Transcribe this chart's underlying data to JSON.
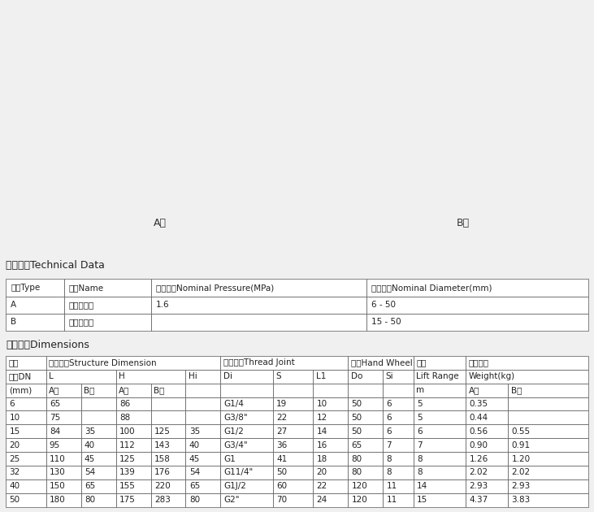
{
  "bg_color": "#e8e8e8",
  "diagram_bg": "#d8d8d8",
  "label_A": "A型",
  "label_B": "B型",
  "section1_title": "性能规范Technical Data",
  "section2_title": "基本尺寸Dimensions",
  "tech_table_headers": [
    "型式Type",
    "名称Name",
    "公称压Nominal Pressure(MPa)",
    "公称通Nominal Diameter(mm)"
  ],
  "tech_table_data": [
    [
      "A",
      "直通截止阀",
      "1.6",
      "6 - 50"
    ],
    [
      "B",
      "直角截止阀",
      "",
      "15 - 50"
    ]
  ],
  "dim_table_header_row1": [
    "公称",
    "结构尺寸Structure Dimension",
    "螺纹接头Thread Joint",
    "手轮Hand Wheel",
    "升程",
    "参考重量"
  ],
  "dim_table_header_row2": [
    "通径DN",
    "L",
    "H",
    "Hi",
    "Di",
    "S",
    "L1",
    "Do",
    "Si",
    "Lift Range",
    "Weight(kg)"
  ],
  "dim_table_header_row3": [
    "(mm)",
    "A型",
    "B型",
    "A型",
    "B型",
    "",
    "",
    "",
    "",
    "",
    "m",
    "A型",
    "B型"
  ],
  "dim_data": [
    [
      "6",
      "65",
      "",
      "86",
      "",
      "",
      "G1/4",
      "19",
      "10",
      "50",
      "6",
      "5",
      "0.35",
      ""
    ],
    [
      "10",
      "75",
      "",
      "88",
      "",
      "",
      "G3/8\"",
      "22",
      "12",
      "50",
      "6",
      "5",
      "0.44",
      ""
    ],
    [
      "15",
      "84",
      "35",
      "100",
      "125",
      "35",
      "G1/2",
      "27",
      "14",
      "50",
      "6",
      "6",
      "0.56",
      "0.55"
    ],
    [
      "20",
      "95",
      "40",
      "112",
      "143",
      "40",
      "G3/4\"",
      "36",
      "16",
      "65",
      "7",
      "7",
      "0.90",
      "0.91"
    ],
    [
      "25",
      "110",
      "45",
      "125",
      "158",
      "45",
      "G1",
      "41",
      "18",
      "80",
      "8",
      "8",
      "1.26",
      "1.20"
    ],
    [
      "32",
      "130",
      "54",
      "139",
      "176",
      "54",
      "G11/4\"",
      "50",
      "20",
      "80",
      "8",
      "8",
      "2.02",
      "2.02"
    ],
    [
      "40",
      "150",
      "65",
      "155",
      "220",
      "65",
      "G1J/2",
      "60",
      "22",
      "120",
      "11",
      "14",
      "2.93",
      "2.93"
    ],
    [
      "50",
      "180",
      "80",
      "175",
      "283",
      "80",
      "G2\"",
      "70",
      "24",
      "120",
      "11",
      "15",
      "4.37",
      "3.83"
    ]
  ],
  "table_border_color": "#555555",
  "table_header_bg": "#ffffff",
  "table_row_bg": "#ffffff",
  "text_color": "#222222",
  "font_size_title": 9,
  "font_size_table": 7.5
}
